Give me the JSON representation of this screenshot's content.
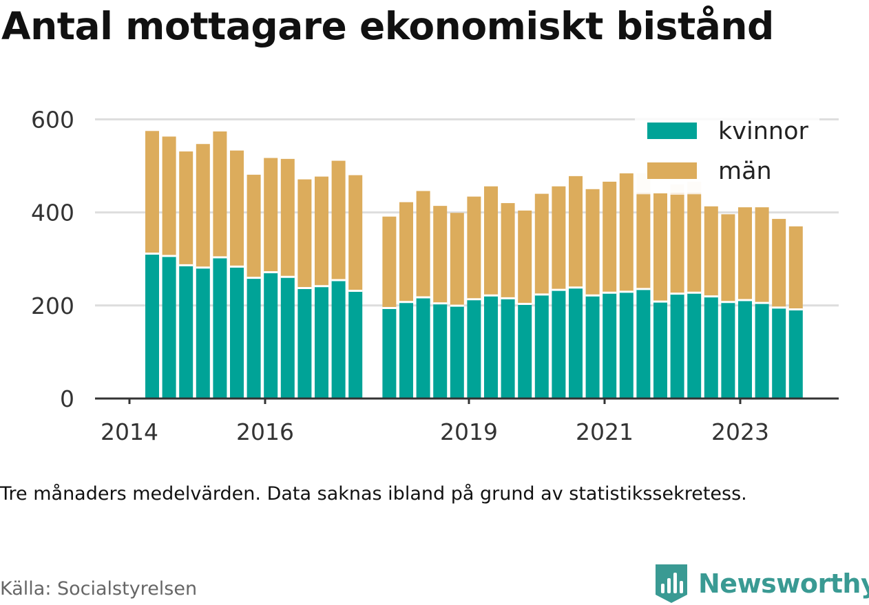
{
  "title": "Antal mottagare ekonomiskt bistånd",
  "note": "Tre månaders medelvärden. Data saknas ibland på grund av statistikssekretess.",
  "source": "Källa: Socialstyrelsen",
  "brand": {
    "name": "Newsworthy",
    "icon": "newsworthy-logo-icon",
    "color": "#3a9a93"
  },
  "colors": {
    "kvinnor": "#00a397",
    "man": "#dcac5c",
    "man_faded": "#f8eddf"
  },
  "chart_data": {
    "type": "bar",
    "stacked": true,
    "x_tick_labels": [
      "2014",
      "2016",
      "2019",
      "2021",
      "2023"
    ],
    "y_ticks": [
      0,
      200,
      400,
      600
    ],
    "ylim": [
      0,
      640
    ],
    "grid": true,
    "legend_position": "top-right",
    "legend": [
      "kvinnor",
      "män"
    ],
    "series": [
      {
        "name": "kvinnor",
        "values": [
          310,
          305,
          285,
          280,
          302,
          282,
          258,
          270,
          260,
          236,
          240,
          253,
          230,
          null,
          193,
          206,
          216,
          203,
          198,
          212,
          220,
          214,
          202,
          222,
          232,
          237,
          220,
          226,
          228,
          234,
          207,
          224,
          226,
          218,
          206,
          210,
          204,
          194,
          190
        ]
      },
      {
        "name": "män",
        "values": [
          265,
          258,
          246,
          267,
          272,
          251,
          223,
          247,
          255,
          235,
          237,
          258,
          250,
          null,
          198,
          216,
          230,
          211,
          201,
          222,
          236,
          206,
          202,
          218,
          224,
          241,
          230,
          240,
          256,
          205,
          234,
          214,
          213,
          195,
          190,
          201,
          207,
          192,
          180
        ]
      }
    ],
    "faded_men_tops": [
      null,
      null,
      null,
      null,
      null,
      null,
      null,
      null,
      null,
      null,
      null,
      null,
      null,
      null,
      null,
      null,
      null,
      null,
      null,
      null,
      null,
      null,
      null,
      null,
      null,
      null,
      null,
      null,
      null,
      484,
      null,
      460,
      466,
      null,
      null,
      null,
      null,
      null,
      null
    ]
  }
}
